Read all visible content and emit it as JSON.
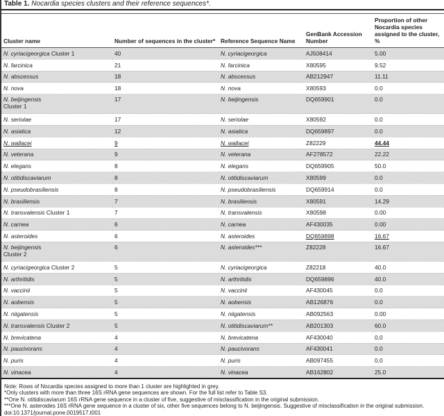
{
  "title": {
    "label": "Table 1.",
    "text": "Nocardia species clusters and their reference sequences*."
  },
  "columns": [
    "Cluster name",
    "Number of sequences in the cluster*",
    "Reference Sequence Name",
    "GenBank Accession Number",
    "Proportion of other Nocardia species assigned to the cluster, %"
  ],
  "highlight_color": "#dcdcdc",
  "rows": [
    {
      "cluster": "N. cyriacigeorgica",
      "suffix": " Cluster 1",
      "count": "40",
      "ref": "N. cyriacigeorgica",
      "acc": "AJ508414",
      "prop": "5.00",
      "grey": true
    },
    {
      "cluster": "N. farcinica",
      "suffix": "",
      "count": "21",
      "ref": "N. farcinica",
      "acc": "X80595",
      "prop": "9.52",
      "grey": false
    },
    {
      "cluster": "N. abscessus",
      "suffix": "",
      "count": "18",
      "ref": "N. abscessus",
      "acc": "AB212947",
      "prop": "11.11",
      "grey": true
    },
    {
      "cluster": "N. nova",
      "suffix": "",
      "count": "18",
      "ref": "N. nova",
      "acc": "X80593",
      "prop": "0.0",
      "grey": false
    },
    {
      "cluster": "N. beijingensis",
      "suffix": "Cluster 1",
      "count": "17",
      "ref": "N. beijingensis",
      "acc": "DQ659901",
      "prop": "0.0",
      "grey": true,
      "double": true
    },
    {
      "cluster": "N. seriolae",
      "suffix": "",
      "count": "17",
      "ref": "N. seriolae",
      "acc": "X80592",
      "prop": "0.0",
      "grey": false
    },
    {
      "cluster": "N. asiatica",
      "suffix": "",
      "count": "12",
      "ref": "N. asiatica",
      "acc": "DQ659897",
      "prop": "0.0",
      "grey": true
    },
    {
      "cluster": "N. wallacei",
      "suffix": "",
      "count": "9",
      "ref": "N. wallacei",
      "acc": "Z82229",
      "prop": "44.44",
      "grey": false,
      "ul": [
        "cluster",
        "count",
        "ref",
        "prop"
      ],
      "bold": [
        "prop"
      ]
    },
    {
      "cluster": "N. veterana",
      "suffix": "",
      "count": "9",
      "ref": "N. veterana",
      "acc": "AF278572",
      "prop": "22.22",
      "grey": true
    },
    {
      "cluster": "N. elegans",
      "suffix": "",
      "count": "8",
      "ref": "N. elegans",
      "acc": "DQ659905",
      "prop": "50.0",
      "grey": false
    },
    {
      "cluster": "N. otitidiscaviarum",
      "suffix": "",
      "count": "8",
      "ref": "N. otitidiscaviarum",
      "acc": "X80599",
      "prop": "0.0",
      "grey": true
    },
    {
      "cluster": "N. pseudobrasiliensis",
      "suffix": "",
      "count": "8",
      "ref": "N. pseudobrasiliensis",
      "acc": "DQ659914",
      "prop": "0.0",
      "grey": false
    },
    {
      "cluster": "N. brasiliensis",
      "suffix": "",
      "count": "7",
      "ref": "N. brasiliensis",
      "acc": "X80591",
      "prop": "14.29",
      "grey": true
    },
    {
      "cluster": "N. transvalensis",
      "suffix": " Cluster 1",
      "count": "7",
      "ref": "N. transvalensis",
      "acc": "X80598",
      "prop": "0.00",
      "grey": false
    },
    {
      "cluster": "N. carnea",
      "suffix": "",
      "count": "6",
      "ref": "N. carnea",
      "acc": "AF430035",
      "prop": "0.00",
      "grey": true
    },
    {
      "cluster": "N. asteroides",
      "suffix": "",
      "count": "6",
      "ref": "N. asteroides",
      "acc": "DQ659898",
      "prop": "16.67",
      "grey": false,
      "ul": [
        "acc",
        "prop"
      ]
    },
    {
      "cluster": "N. beijingensis",
      "suffix": "Cluster 2",
      "count": "6",
      "ref": "N. asteroides***",
      "acc": "Z82228",
      "prop": "16.67",
      "grey": true,
      "double": true
    },
    {
      "cluster": "N. cyriacigeorgica",
      "suffix": " Cluster 2",
      "count": "5",
      "ref": "N. cyriacigeorgica",
      "acc": "Z82218",
      "prop": "40.0",
      "grey": false
    },
    {
      "cluster": "N. arthritidis",
      "suffix": "",
      "count": "5",
      "ref": "N. arthritidis",
      "acc": "DQ659896",
      "prop": "40.0",
      "grey": true
    },
    {
      "cluster": "N. vaccinii",
      "suffix": "",
      "count": "5",
      "ref": "N. vaccinii",
      "acc": "AF430045",
      "prop": "0.0",
      "grey": false
    },
    {
      "cluster": "N. aobensis",
      "suffix": "",
      "count": "5",
      "ref": "N. aobensis",
      "acc": "AB126876",
      "prop": "0.0",
      "grey": true
    },
    {
      "cluster": "N. niigatensis",
      "suffix": "",
      "count": "5",
      "ref": "N. niigatensis",
      "acc": "AB092563",
      "prop": "0.00",
      "grey": false
    },
    {
      "cluster": "N. transvalensis",
      "suffix": " Cluster 2",
      "count": "5",
      "ref": "N. otitidiscaviarum**",
      "acc": "AB201303",
      "prop": "60.0",
      "grey": true
    },
    {
      "cluster": "N. brevicatena",
      "suffix": "",
      "count": "4",
      "ref": "N. brevicatena",
      "acc": "AF430040",
      "prop": "0.0",
      "grey": false
    },
    {
      "cluster": "N. paucivorans",
      "suffix": "",
      "count": "4",
      "ref": "N. paucivorans",
      "acc": "AF430041",
      "prop": "0.0",
      "grey": true
    },
    {
      "cluster": "N. puris",
      "suffix": "",
      "count": "4",
      "ref": "N. puris",
      "acc": "AB097455",
      "prop": "0.0",
      "grey": false
    },
    {
      "cluster": "N. vinacea",
      "suffix": "",
      "count": "4",
      "ref": "N. vinacea",
      "acc": "AB162802",
      "prop": "25.0",
      "grey": true
    }
  ],
  "notes": [
    "Note: Rows of Nocardia species assigned to more than 1 cluster are highlighted in grey.",
    "*Only clusters with more than three 16S rRNA gene sequences are shown. For the full list refer to Table S3.",
    "**One N. otitidiscaviarum 16S rRNA gene sequence in a cluster of five, suggestive of misclassification in the original submission.",
    "***One N. asteroides 16S rRNA gene sequence in a cluster of six, other five sequences belong to N. beijingensis. Suggestive of misclassification in the original submission.",
    "doi:10.1371/journal.pone.0019517.t001"
  ]
}
